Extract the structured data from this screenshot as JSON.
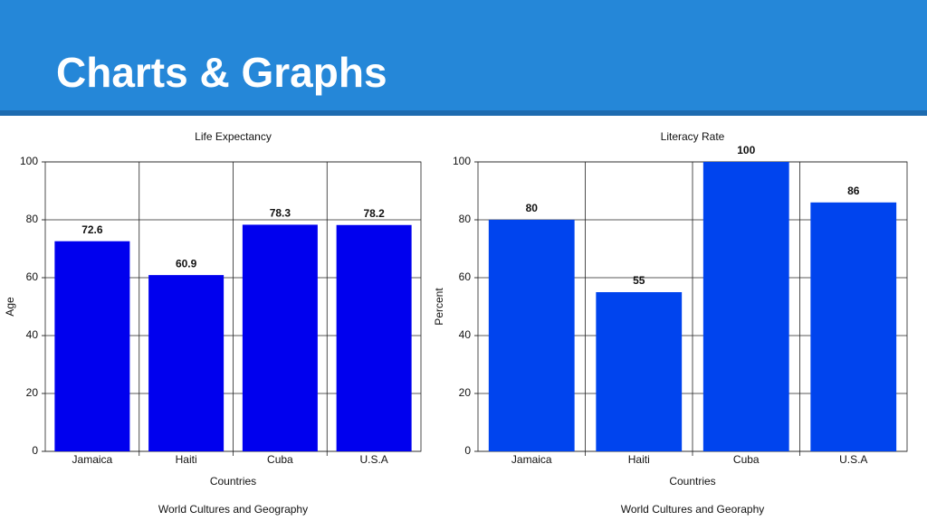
{
  "header": {
    "title": "Charts & Graphs"
  },
  "chart_data": [
    {
      "type": "bar",
      "title": "Life Expectancy",
      "x_label": "Countries",
      "y_label": "Age",
      "caption": "World Cultures and Geography",
      "categories": [
        "Jamaica",
        "Haiti",
        "Cuba",
        "U.S.A"
      ],
      "values": [
        72.6,
        60.9,
        78.3,
        78.2
      ],
      "color": "#0000ee",
      "ylim": [
        0,
        100
      ],
      "yticks": [
        0,
        20,
        40,
        60,
        80,
        100
      ],
      "grid": true
    },
    {
      "type": "bar",
      "title": "Literacy Rate",
      "x_label": "Countries",
      "y_label": "Percent",
      "caption": "World Cultures and Georaphy",
      "categories": [
        "Jamaica",
        "Haiti",
        "Cuba",
        "U.S.A"
      ],
      "values": [
        80,
        55,
        100,
        86
      ],
      "color": "#0044ee",
      "ylim": [
        0,
        100
      ],
      "yticks": [
        0,
        20,
        40,
        60,
        80,
        100
      ],
      "grid": true
    }
  ]
}
